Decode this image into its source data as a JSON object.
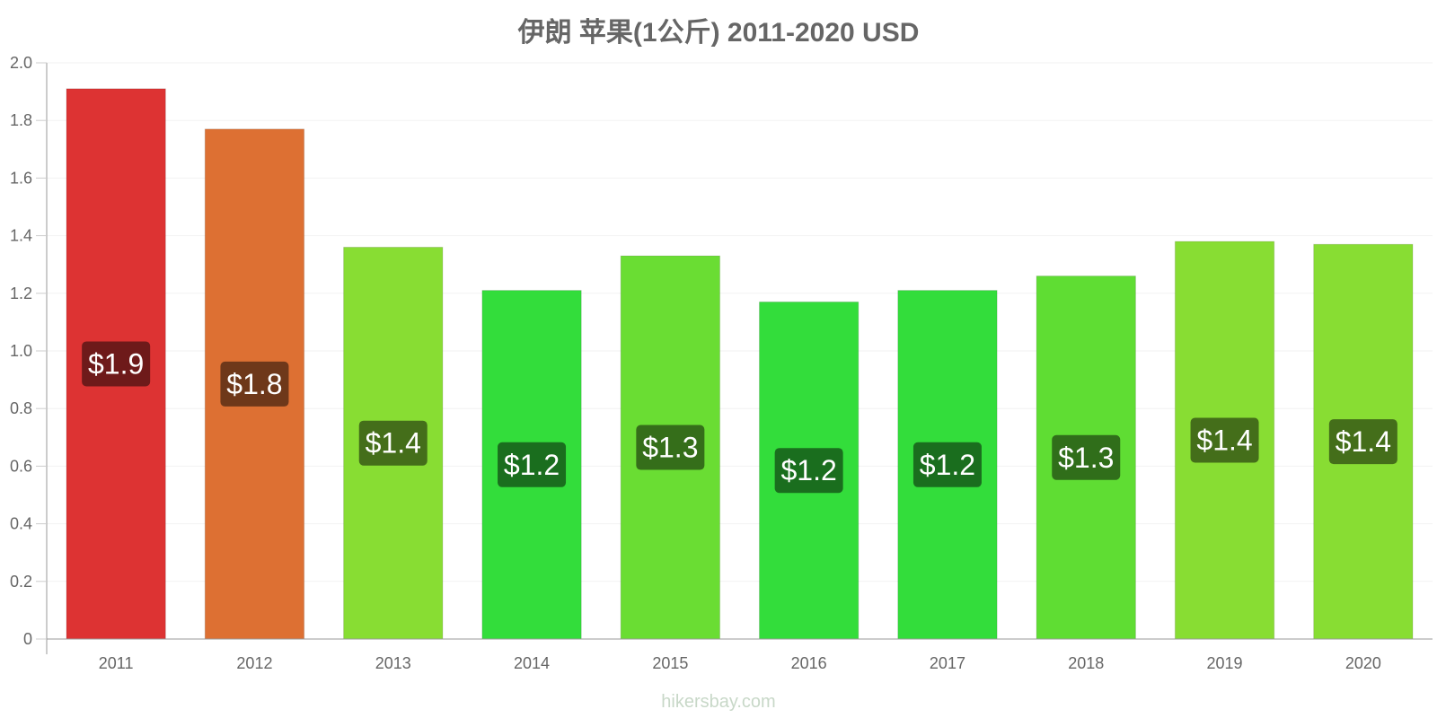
{
  "chart_data": {
    "type": "bar",
    "title": "伊朗 苹果(1公斤) 2011-2020 USD",
    "xlabel": "",
    "ylabel": "",
    "ylim": [
      0,
      2.0
    ],
    "y_ticks": [
      "0",
      "0.2",
      "0.4",
      "0.6",
      "0.8",
      "1.0",
      "1.2",
      "1.4",
      "1.6",
      "1.8",
      "2.0"
    ],
    "grid": true,
    "categories": [
      "2011",
      "2012",
      "2013",
      "2014",
      "2015",
      "2016",
      "2017",
      "2018",
      "2019",
      "2020"
    ],
    "values": [
      1.91,
      1.77,
      1.36,
      1.21,
      1.33,
      1.17,
      1.21,
      1.26,
      1.38,
      1.37
    ],
    "data_labels": [
      "$1.9",
      "$1.8",
      "$1.4",
      "$1.2",
      "$1.3",
      "$1.2",
      "$1.2",
      "$1.3",
      "$1.4",
      "$1.4"
    ],
    "bar_colors": [
      "#dd3333",
      "#dd7033",
      "#88dd33",
      "#33dd3b",
      "#6add33",
      "#33dd3b",
      "#33dd3b",
      "#5fdd33",
      "#88dd33",
      "#88dd33"
    ],
    "label_colors": [
      "#6e1a1a",
      "#6e381a",
      "#446e1a",
      "#1a6e1e",
      "#356e1a",
      "#1a6e1e",
      "#1a6e1e",
      "#306e1a",
      "#446e1a",
      "#446e1a"
    ]
  },
  "watermark": "hikersbay.com"
}
